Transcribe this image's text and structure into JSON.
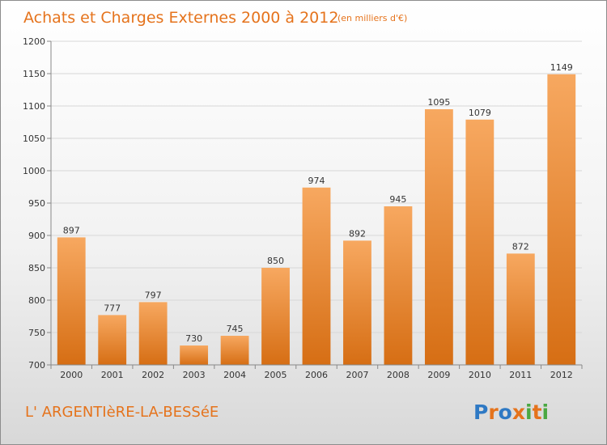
{
  "title": "Achats et Charges Externes 2000 à 2012",
  "subtitle": "(en milliers d'€)",
  "location": "L' ARGENTIèRE-LA-BESSéE",
  "brand": {
    "letters": [
      "P",
      "r",
      "o",
      "x",
      "i",
      "t",
      "i"
    ],
    "colors": [
      "#2e79c4",
      "#e5731c",
      "#2e79c4",
      "#e5731c",
      "#4aa842",
      "#e5731c",
      "#4aa842"
    ]
  },
  "colors": {
    "bar_top": "#f7a860",
    "bar_bottom": "#d66e14",
    "accent": "#e5731c"
  },
  "chart_data": {
    "type": "bar",
    "title": "Achats et Charges Externes 2000 à 2012",
    "subtitle": "(en milliers d'€)",
    "categories": [
      "2000",
      "2001",
      "2002",
      "2003",
      "2004",
      "2005",
      "2006",
      "2007",
      "2008",
      "2009",
      "2010",
      "2011",
      "2012"
    ],
    "values": [
      897,
      777,
      797,
      730,
      745,
      850,
      974,
      892,
      945,
      1095,
      1079,
      872,
      1149
    ],
    "ylim": [
      700,
      1200
    ],
    "yticks": [
      700,
      750,
      800,
      850,
      900,
      950,
      1000,
      1050,
      1100,
      1150,
      1200
    ],
    "grid": true
  }
}
